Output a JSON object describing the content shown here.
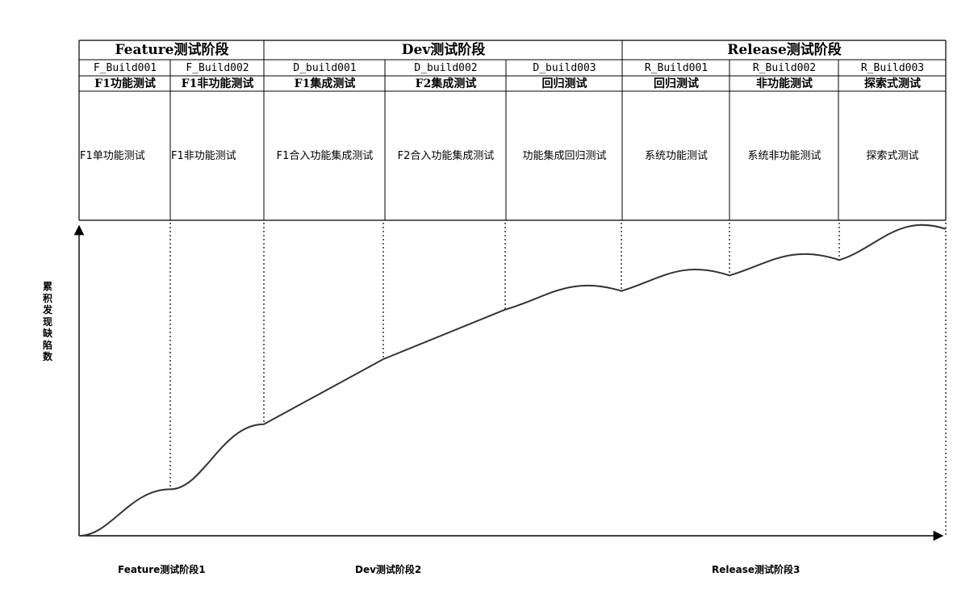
{
  "stages": [
    {
      "label": "Feature测试阶段"
    },
    {
      "label": "Dev测试阶段"
    },
    {
      "label": "Release测试阶段"
    }
  ],
  "builds": [
    "F_Build001",
    "F_Build002",
    "D_build001",
    "D_build002",
    "D_build003",
    "R_Build001",
    "R_Build002",
    "R_Build003"
  ],
  "test_types": [
    "F1功能测试",
    "F1非功能测试",
    "F1集成测试",
    "F2集成测试",
    "回归测试",
    "回归测试",
    "非功能测试",
    "探索式测试"
  ],
  "descriptions": [
    "F1单功能测试",
    "F1非功能测试",
    "F1合入功能集成测试",
    "F2合入功能集成测试",
    "功能集成回归测试",
    "系统功能测试",
    "系统非功能测试",
    "探索式测试"
  ],
  "chart": {
    "y_axis_label": "累积发现缺陷数",
    "x_labels": [
      "Feature测试阶段1",
      "Dev测试阶段2",
      "Release测试阶段3"
    ]
  },
  "chart_data": {
    "type": "line",
    "title": "",
    "ylabel": "累积发现缺陷数",
    "xlabel": "",
    "x_segments": [
      "F_Build001",
      "F_Build002",
      "D_build001",
      "D_build002",
      "D_build003",
      "R_Build001",
      "R_Build002",
      "R_Build003"
    ],
    "boundary_values": [
      0,
      15,
      36,
      57,
      73,
      79,
      84,
      89,
      99
    ],
    "note": "qualitative cumulative defect curve, values estimated as percent of plot height"
  }
}
